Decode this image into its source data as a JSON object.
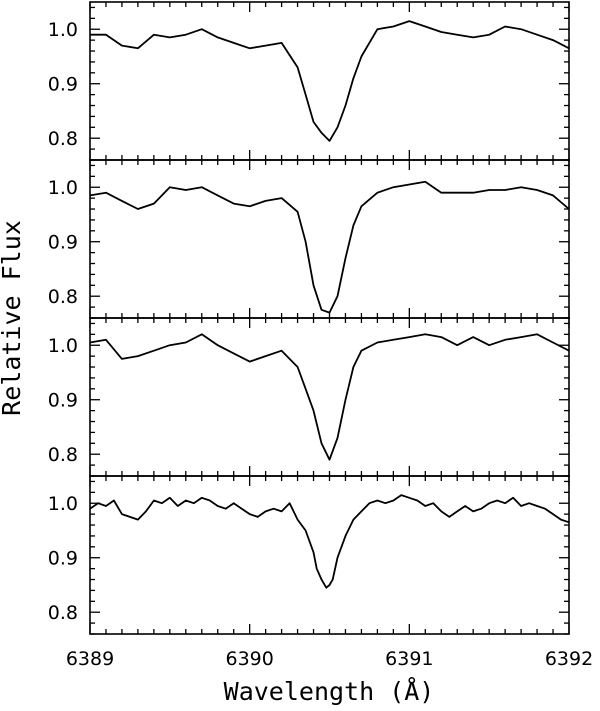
{
  "chart_data": {
    "type": "line",
    "xlabel": "Wavelength (Å)",
    "ylabel": "Relative Flux",
    "xlim": [
      6389,
      6392
    ],
    "x_ticks": [
      6389,
      6390,
      6391,
      6392
    ],
    "x_tick_labels": [
      "6389",
      "6390",
      "6391",
      "6392"
    ],
    "shared_x_axis": true,
    "panels": [
      {
        "ylim": [
          0.76,
          1.05
        ],
        "y_ticks": [
          0.8,
          0.9,
          1.0
        ],
        "y_tick_labels": [
          "0.8",
          "0.9",
          "1.0"
        ],
        "x": [
          6389.0,
          6389.1,
          6389.2,
          6389.3,
          6389.4,
          6389.5,
          6389.6,
          6389.7,
          6389.8,
          6389.9,
          6390.0,
          6390.1,
          6390.2,
          6390.3,
          6390.35,
          6390.4,
          6390.45,
          6390.5,
          6390.55,
          6390.6,
          6390.65,
          6390.7,
          6390.8,
          6390.9,
          6391.0,
          6391.1,
          6391.2,
          6391.3,
          6391.4,
          6391.5,
          6391.6,
          6391.7,
          6391.8,
          6391.9,
          6392.0
        ],
        "y": [
          0.99,
          0.99,
          0.97,
          0.965,
          0.99,
          0.985,
          0.99,
          1.0,
          0.985,
          0.975,
          0.965,
          0.97,
          0.975,
          0.93,
          0.88,
          0.83,
          0.81,
          0.795,
          0.82,
          0.86,
          0.91,
          0.95,
          1.0,
          1.005,
          1.015,
          1.005,
          0.995,
          0.99,
          0.985,
          0.99,
          1.005,
          1.0,
          0.99,
          0.98,
          0.965
        ]
      },
      {
        "ylim": [
          0.76,
          1.05
        ],
        "y_ticks": [
          0.8,
          0.9,
          1.0
        ],
        "y_tick_labels": [
          "0.8",
          "0.9",
          "1.0"
        ],
        "x": [
          6389.0,
          6389.1,
          6389.2,
          6389.3,
          6389.4,
          6389.5,
          6389.6,
          6389.7,
          6389.8,
          6389.9,
          6390.0,
          6390.1,
          6390.2,
          6390.3,
          6390.35,
          6390.4,
          6390.45,
          6390.5,
          6390.55,
          6390.6,
          6390.65,
          6390.7,
          6390.8,
          6390.9,
          6391.0,
          6391.1,
          6391.2,
          6391.3,
          6391.4,
          6391.5,
          6391.6,
          6391.7,
          6391.8,
          6391.9,
          6392.0
        ],
        "y": [
          0.985,
          0.99,
          0.975,
          0.96,
          0.97,
          1.0,
          0.995,
          1.0,
          0.985,
          0.97,
          0.965,
          0.975,
          0.98,
          0.955,
          0.9,
          0.82,
          0.775,
          0.77,
          0.8,
          0.87,
          0.93,
          0.965,
          0.99,
          1.0,
          1.005,
          1.01,
          0.99,
          0.99,
          0.99,
          0.995,
          0.995,
          1.0,
          0.995,
          0.985,
          0.96
        ]
      },
      {
        "ylim": [
          0.76,
          1.05
        ],
        "y_ticks": [
          0.8,
          0.9,
          1.0
        ],
        "y_tick_labels": [
          "0.8",
          "0.9",
          "1.0"
        ],
        "x": [
          6389.0,
          6389.1,
          6389.2,
          6389.3,
          6389.4,
          6389.5,
          6389.6,
          6389.7,
          6389.8,
          6389.9,
          6390.0,
          6390.1,
          6390.2,
          6390.3,
          6390.35,
          6390.4,
          6390.45,
          6390.5,
          6390.55,
          6390.6,
          6390.65,
          6390.7,
          6390.8,
          6390.9,
          6391.0,
          6391.1,
          6391.2,
          6391.3,
          6391.4,
          6391.5,
          6391.6,
          6391.7,
          6391.8,
          6391.9,
          6392.0
        ],
        "y": [
          1.005,
          1.01,
          0.975,
          0.98,
          0.99,
          1.0,
          1.005,
          1.02,
          1.0,
          0.985,
          0.97,
          0.98,
          0.99,
          0.96,
          0.92,
          0.88,
          0.82,
          0.79,
          0.83,
          0.9,
          0.96,
          0.99,
          1.005,
          1.01,
          1.015,
          1.02,
          1.015,
          1.0,
          1.015,
          1.0,
          1.01,
          1.015,
          1.02,
          1.005,
          0.99
        ]
      },
      {
        "ylim": [
          0.76,
          1.05
        ],
        "y_ticks": [
          0.8,
          0.9,
          1.0
        ],
        "y_tick_labels": [
          "0.8",
          "0.9",
          "1.0"
        ],
        "x": [
          6389.0,
          6389.05,
          6389.1,
          6389.15,
          6389.2,
          6389.25,
          6389.3,
          6389.35,
          6389.4,
          6389.45,
          6389.5,
          6389.55,
          6389.6,
          6389.65,
          6389.7,
          6389.75,
          6389.8,
          6389.85,
          6389.9,
          6389.95,
          6390.0,
          6390.05,
          6390.1,
          6390.15,
          6390.2,
          6390.25,
          6390.3,
          6390.35,
          6390.4,
          6390.42,
          6390.45,
          6390.48,
          6390.5,
          6390.52,
          6390.55,
          6390.6,
          6390.65,
          6390.7,
          6390.75,
          6390.8,
          6390.85,
          6390.9,
          6390.95,
          6391.0,
          6391.05,
          6391.1,
          6391.15,
          6391.2,
          6391.25,
          6391.3,
          6391.35,
          6391.4,
          6391.45,
          6391.5,
          6391.55,
          6391.6,
          6391.65,
          6391.7,
          6391.75,
          6391.8,
          6391.85,
          6391.9,
          6391.95,
          6392.0
        ],
        "y": [
          0.99,
          1.0,
          0.995,
          1.005,
          0.98,
          0.975,
          0.97,
          0.985,
          1.005,
          1.0,
          1.01,
          0.995,
          1.005,
          1.0,
          1.01,
          1.005,
          0.995,
          0.99,
          1.0,
          0.99,
          0.98,
          0.975,
          0.985,
          0.99,
          0.985,
          1.0,
          0.97,
          0.95,
          0.91,
          0.88,
          0.86,
          0.845,
          0.85,
          0.86,
          0.9,
          0.94,
          0.97,
          0.985,
          1.0,
          1.005,
          1.0,
          1.005,
          1.015,
          1.01,
          1.005,
          0.995,
          1.0,
          0.985,
          0.975,
          0.985,
          0.995,
          0.985,
          0.99,
          1.0,
          1.005,
          1.0,
          1.01,
          0.995,
          1.0,
          0.995,
          0.99,
          0.98,
          0.97,
          0.965
        ]
      }
    ]
  }
}
